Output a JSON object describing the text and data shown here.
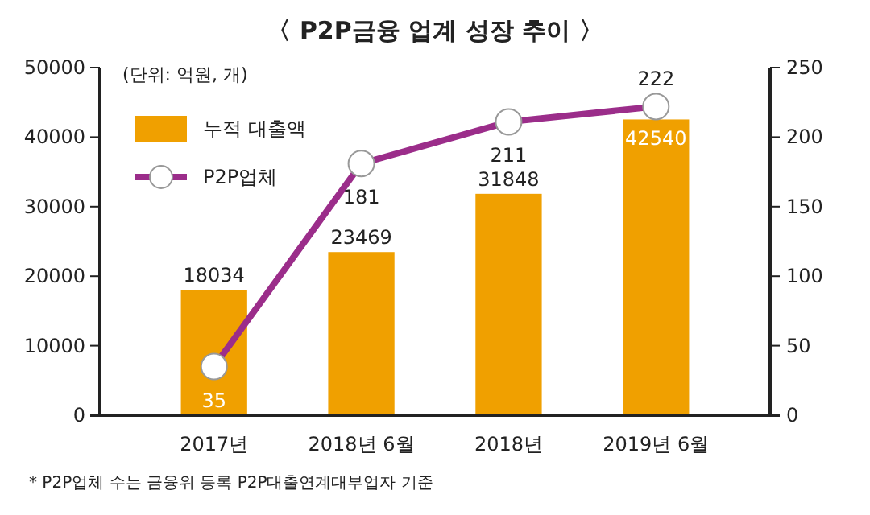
{
  "chart_data": {
    "type": "bar",
    "title": "〈 P2P금융 업계 성장 추이 〉",
    "categories": [
      "2017년",
      "2018년 6월",
      "2018년",
      "2019년 6월"
    ],
    "series": [
      {
        "name": "누적 대출액",
        "color": "#f0a000",
        "values": [
          18034,
          23469,
          31848,
          42540
        ]
      },
      {
        "name": "P2P업체",
        "type": "line",
        "axis": "y2",
        "color": "#9b2d8a",
        "values": [
          35,
          181,
          211,
          222
        ]
      }
    ],
    "ylim": [
      0,
      50000
    ],
    "yticks": [
      0,
      10000,
      20000,
      30000,
      40000,
      50000
    ],
    "y2lim": [
      0,
      250
    ],
    "y2ticks": [
      0,
      50,
      100,
      150,
      200,
      250
    ],
    "data_labels": true,
    "marker": "circle",
    "legend": "top left",
    "grid": false,
    "annotations": [
      "(단위: 억원, 개)",
      "* P2P업체 수는 금융위 등록 P2P대출연계대부업자 기준"
    ]
  }
}
